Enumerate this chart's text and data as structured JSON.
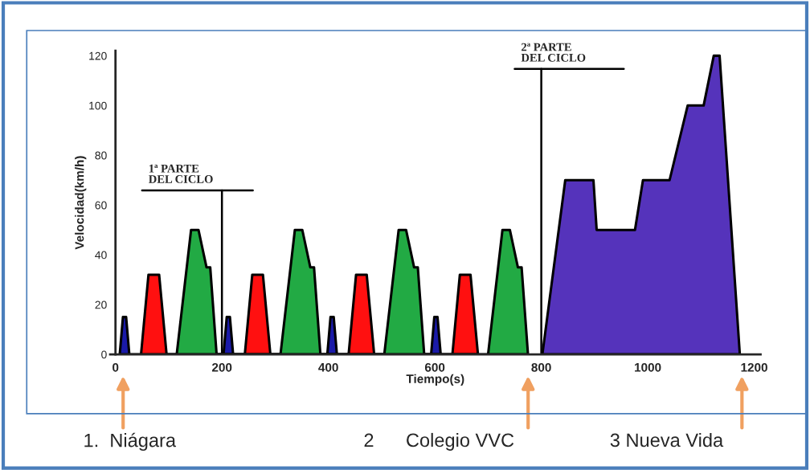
{
  "chart_data": {
    "type": "area",
    "xlabel": "Tiempo(s)",
    "ylabel": "Velocidad(km/h)",
    "xlim": [
      -10,
      1212
    ],
    "ylim": [
      0,
      122
    ],
    "xticks": [
      0,
      200,
      400,
      600,
      800,
      1000,
      1200
    ],
    "yticks": [
      0,
      20,
      40,
      60,
      80,
      100,
      120
    ],
    "grid": false,
    "legend": false,
    "series": [
      {
        "color": "#1a1aa8",
        "x": [
          8,
          14,
          20,
          26,
          203,
          209,
          215,
          221,
          398,
          404,
          410,
          416,
          593,
          599,
          605,
          611
        ],
        "values": [
          0,
          15,
          15,
          0,
          0,
          15,
          15,
          0,
          0,
          15,
          15,
          0,
          0,
          15,
          15,
          0
        ]
      },
      {
        "color": "#ff1010",
        "x": [
          48,
          62,
          82,
          96,
          243,
          257,
          277,
          291,
          438,
          452,
          472,
          486,
          633,
          647,
          667,
          681
        ],
        "values": [
          0,
          32,
          32,
          0,
          0,
          32,
          32,
          0,
          0,
          32,
          32,
          0,
          0,
          32,
          32,
          0
        ]
      },
      {
        "color": "#22aa44",
        "x": [
          115,
          142,
          156,
          171,
          178,
          190,
          310,
          337,
          351,
          366,
          373,
          385,
          505,
          532,
          546,
          561,
          568,
          580,
          700,
          727,
          741,
          756,
          763,
          775
        ],
        "values": [
          0,
          50,
          50,
          35,
          35,
          0,
          0,
          50,
          50,
          35,
          35,
          0,
          0,
          50,
          50,
          35,
          35,
          0,
          0,
          50,
          50,
          35,
          35,
          0
        ]
      },
      {
        "color": "#5533bb",
        "x": [
          802,
          845,
          898,
          904,
          976,
          991,
          1041,
          1075,
          1105,
          1124,
          1135,
          1173
        ],
        "values": [
          0,
          70,
          70,
          50,
          50,
          70,
          70,
          100,
          100,
          120,
          120,
          0
        ]
      }
    ],
    "ref_lines": [
      {
        "axis": "x",
        "value": 200,
        "label": "1ª PARTE\nDEL CICLO"
      },
      {
        "axis": "x",
        "value": 800,
        "label": "2ª PARTE\nDEL CICLO"
      }
    ],
    "annotations": [
      "1.  Niágara",
      "2      Colegio VVC",
      "3 Nueva Vida"
    ]
  }
}
